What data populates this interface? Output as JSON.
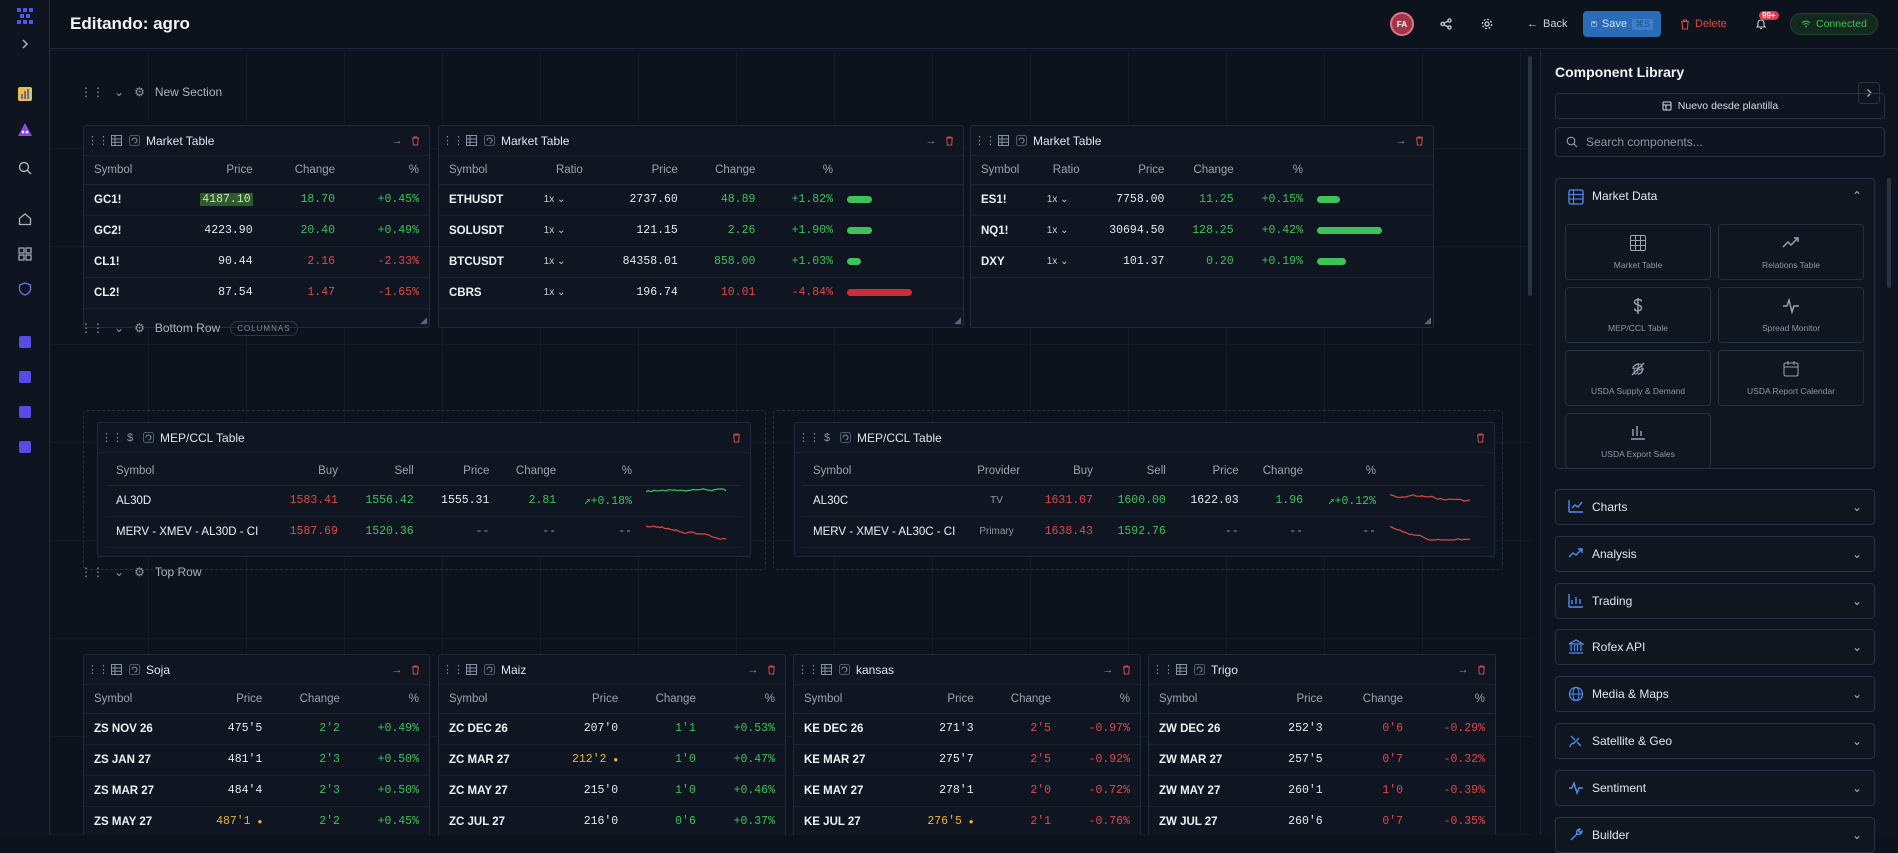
{
  "header": {
    "title": "Editando: agro",
    "avatar_initials": "FA",
    "back_label": "Back",
    "save_label": "Save",
    "save_shortcut": "⌘S",
    "delete_label": "Delete",
    "notif_count": "99+",
    "status_label": "Connected"
  },
  "sections": {
    "s1": {
      "name": "New Section"
    },
    "s2": {
      "name": "Bottom Row",
      "badge": "COLUMNAS"
    },
    "s3": {
      "name": "Top Row"
    }
  },
  "market_tables": [
    {
      "title": "Market Table",
      "columns": [
        "Symbol",
        "Price",
        "Change",
        "%"
      ],
      "rows": [
        {
          "symbol": "GC1!",
          "price": "4187.10",
          "change": "18.70",
          "pct": "+0.45%",
          "dir": "pos"
        },
        {
          "symbol": "GC2!",
          "price": "4223.90",
          "change": "20.40",
          "pct": "+0.49%",
          "dir": "pos"
        },
        {
          "symbol": "CL1!",
          "price": "90.44",
          "change": "2.16",
          "pct": "-2.33%",
          "dir": "neg"
        },
        {
          "symbol": "CL2!",
          "price": "87.54",
          "change": "1.47",
          "pct": "-1.65%",
          "dir": "neg"
        }
      ]
    },
    {
      "title": "Market Table",
      "columns": [
        "Symbol",
        "Ratio",
        "Price",
        "Change",
        "%"
      ],
      "rows": [
        {
          "symbol": "ETHUSDT",
          "ratio": "1x",
          "price": "2737.60",
          "change": "48.89",
          "pct": "+1.82%",
          "dir": "pos",
          "bar": 0.38
        },
        {
          "symbol": "SOLUSDT",
          "ratio": "1x",
          "price": "121.15",
          "change": "2.26",
          "pct": "+1.90%",
          "dir": "pos",
          "bar": 0.39
        },
        {
          "symbol": "BTCUSDT",
          "ratio": "1x",
          "price": "84358.01",
          "change": "858.00",
          "pct": "+1.03%",
          "dir": "pos",
          "bar": 0.21
        },
        {
          "symbol": "CBRS",
          "ratio": "1x",
          "price": "196.74",
          "change": "10.01",
          "pct": "-4.84%",
          "dir": "neg",
          "bar": 1.0
        }
      ]
    },
    {
      "title": "Market Table",
      "columns": [
        "Symbol",
        "Ratio",
        "Price",
        "Change",
        "%"
      ],
      "rows": [
        {
          "symbol": "ES1!",
          "ratio": "1x",
          "price": "7758.00",
          "change": "11.25",
          "pct": "+0.15%",
          "dir": "pos",
          "bar": 0.36
        },
        {
          "symbol": "NQ1!",
          "ratio": "1x",
          "price": "30694.50",
          "change": "128.25",
          "pct": "+0.42%",
          "dir": "pos",
          "bar": 1.0
        },
        {
          "symbol": "DXY",
          "ratio": "1x",
          "price": "101.37",
          "change": "0.20",
          "pct": "+0.19%",
          "dir": "pos",
          "bar": 0.45
        }
      ]
    }
  ],
  "mep_tables": [
    {
      "title": "MEP/CCL Table",
      "columns": [
        "Symbol",
        "Buy",
        "Sell",
        "Price",
        "Change",
        "%"
      ],
      "rows": [
        {
          "symbol": "AL30D",
          "buy": "1583.41",
          "sell": "1556.42",
          "price": "1555.31",
          "change": "2.81",
          "pct": "+0.18%",
          "spark": "pos"
        },
        {
          "symbol": "MERV - XMEV - AL30D - CI",
          "buy": "1587.69",
          "sell": "1520.36",
          "price": "--",
          "change": "--",
          "pct": "--",
          "spark": "neg"
        }
      ]
    },
    {
      "title": "MEP/CCL Table",
      "columns": [
        "Symbol",
        "Provider",
        "Buy",
        "Sell",
        "Price",
        "Change",
        "%"
      ],
      "rows": [
        {
          "symbol": "AL30C",
          "provider": "TV",
          "buy": "1631.07",
          "sell": "1600.00",
          "price": "1622.03",
          "change": "1.96",
          "pct": "+0.12%",
          "spark": "neg"
        },
        {
          "symbol": "MERV - XMEV - AL30C - CI",
          "provider": "Primary",
          "buy": "1638.43",
          "sell": "1592.76",
          "price": "--",
          "change": "--",
          "pct": "--",
          "spark": "neg"
        }
      ]
    }
  ],
  "grain_tables": [
    {
      "title": "Soja",
      "columns": [
        "Symbol",
        "Price",
        "Change",
        "%"
      ],
      "rows": [
        {
          "symbol": "ZS NOV 26",
          "price": "475'5",
          "change": "2'2",
          "pct": "+0.49%",
          "dir": "pos"
        },
        {
          "symbol": "ZS JAN 27",
          "price": "481'1",
          "change": "2'3",
          "pct": "+0.50%",
          "dir": "pos"
        },
        {
          "symbol": "ZS MAR 27",
          "price": "484'4",
          "change": "2'3",
          "pct": "+0.50%",
          "dir": "pos"
        },
        {
          "symbol": "ZS MAY 27",
          "price": "487'1",
          "change": "2'2",
          "pct": "+0.45%",
          "dir": "pos",
          "stale": true
        }
      ]
    },
    {
      "title": "Maiz",
      "columns": [
        "Symbol",
        "Price",
        "Change",
        "%"
      ],
      "rows": [
        {
          "symbol": "ZC DEC 26",
          "price": "207'0",
          "change": "1'1",
          "pct": "+0.53%",
          "dir": "pos"
        },
        {
          "symbol": "ZC MAR 27",
          "price": "212'2",
          "change": "1'0",
          "pct": "+0.47%",
          "dir": "pos",
          "stale": true
        },
        {
          "symbol": "ZC MAY 27",
          "price": "215'0",
          "change": "1'0",
          "pct": "+0.46%",
          "dir": "pos"
        },
        {
          "symbol": "ZC JUL 27",
          "price": "216'0",
          "change": "0'6",
          "pct": "+0.37%",
          "dir": "pos"
        }
      ]
    },
    {
      "title": "kansas",
      "columns": [
        "Symbol",
        "Price",
        "Change",
        "%"
      ],
      "rows": [
        {
          "symbol": "KE DEC 26",
          "price": "271'3",
          "change": "2'5",
          "pct": "-0.97%",
          "dir": "neg"
        },
        {
          "symbol": "KE MAR 27",
          "price": "275'7",
          "change": "2'5",
          "pct": "-0.92%",
          "dir": "neg"
        },
        {
          "symbol": "KE MAY 27",
          "price": "278'1",
          "change": "2'0",
          "pct": "-0.72%",
          "dir": "neg"
        },
        {
          "symbol": "KE JUL 27",
          "price": "276'5",
          "change": "2'1",
          "pct": "-0.76%",
          "dir": "neg",
          "stale": true
        }
      ]
    },
    {
      "title": "Trigo",
      "columns": [
        "Symbol",
        "Price",
        "Change",
        "%"
      ],
      "rows": [
        {
          "symbol": "ZW DEC 26",
          "price": "252'3",
          "change": "0'6",
          "pct": "-0.29%",
          "dir": "neg"
        },
        {
          "symbol": "ZW MAR 27",
          "price": "257'5",
          "change": "0'7",
          "pct": "-0.32%",
          "dir": "neg"
        },
        {
          "symbol": "ZW MAY 27",
          "price": "260'1",
          "change": "1'0",
          "pct": "-0.39%",
          "dir": "neg"
        },
        {
          "symbol": "ZW JUL 27",
          "price": "260'6",
          "change": "0'7",
          "pct": "-0.35%",
          "dir": "neg"
        }
      ]
    }
  ],
  "library": {
    "title": "Component Library",
    "template_button": "Nuevo desde plantilla",
    "search_placeholder": "Search components...",
    "market_data_label": "Market Data",
    "tiles": [
      "Market Table",
      "Relations Table",
      "MEP/CCL Table",
      "Spread Monitor",
      "USDA Supply & Demand",
      "USDA Report Calendar",
      "USDA Export Sales"
    ],
    "categories": [
      "Charts",
      "Analysis",
      "Trading",
      "Rofex API",
      "Media & Maps",
      "Satellite & Geo",
      "Sentiment",
      "Builder"
    ]
  },
  "colors": {
    "positive": "#3ec25a",
    "negative": "#e04848",
    "accent": "#4b57e6",
    "save": "#2a6cb8"
  }
}
